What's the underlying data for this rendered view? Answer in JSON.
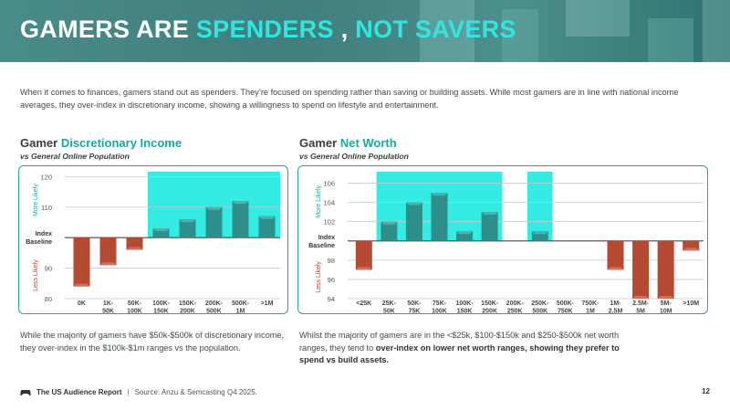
{
  "header": {
    "title_part1": "GAMERS ARE",
    "title_part2": "SPENDERS",
    "title_part3": ",",
    "title_part4": "NOT SAVERS"
  },
  "intro": "When it comes to finances, gamers stand out as spenders. They’re focused on spending rather than saving or building assets. While most gamers are in line with national income averages, they over-index in discretionary income, showing a willingness to spend on lifestyle and entertainment.",
  "left": {
    "title_a": "Gamer",
    "title_b": "Discretionary Income",
    "subtitle": "vs General Online Population",
    "footnote": "While the majority of gamers have $50k-$500k of discretionary income, they over-index in the $100k-$1m ranges vs the population."
  },
  "right": {
    "title_a": "Gamer",
    "title_b": "Net Worth",
    "subtitle": "vs General Online Population",
    "footnote_plain": "Whilst the majority of gamers are in the <$25k, $100-$150k and $250-$500k net worth ranges, they tend to",
    "footnote_bold": "over-index on lower net worth ranges, showing they prefer to spend vs build assets."
  },
  "footer": {
    "brand": "The US Audience Report",
    "source": "Source: Anzu & Semcasting Q4 2025.",
    "page": "12"
  },
  "colors": {
    "teal_bar": "#2e8f8a",
    "red_bar": "#b54a32",
    "highlight": "#34ece4",
    "accent": "#1aa79f"
  },
  "chart_data": [
    {
      "type": "bar",
      "title": "Gamer Discretionary Income",
      "subtitle": "vs General Online Population",
      "categories": [
        "0K",
        "1K-50K",
        "50K-100K",
        "100K-150K",
        "150K-200K",
        "200K-500K",
        "500K-1M",
        ">1M"
      ],
      "category_lines": [
        [
          "0K"
        ],
        [
          "1K-",
          "50K"
        ],
        [
          "50K-",
          "100K"
        ],
        [
          "100K-",
          "150K"
        ],
        [
          "150K-",
          "200K"
        ],
        [
          "200K-",
          "500K"
        ],
        [
          "500K-",
          "1M"
        ],
        [
          ">1M"
        ]
      ],
      "values": [
        84,
        91,
        96,
        103,
        106,
        110,
        112,
        107
      ],
      "baseline": 100,
      "baseline_label": [
        "Index",
        "Baseline"
      ],
      "ylim": [
        80,
        121
      ],
      "yticks": [
        80,
        90,
        110,
        120
      ],
      "upper_label": "More Likely",
      "lower_label": "Less Likely",
      "highlight_categories": [
        3,
        4,
        5,
        6,
        7
      ]
    },
    {
      "type": "bar",
      "title": "Gamer Net Worth",
      "subtitle": "vs General Online Population",
      "categories": [
        "<25K",
        "25K-50K",
        "50K-75K",
        "75K-100K",
        "100K-150K",
        "150K-200K",
        "200K-250K",
        "250K-500K",
        "500K-750K",
        "750K-1M",
        "1M-2.5M",
        "2.5M-5M",
        "5M-10M",
        ">10M"
      ],
      "category_lines": [
        [
          "<25K"
        ],
        [
          "25K-",
          "50K"
        ],
        [
          "50K-",
          "75K"
        ],
        [
          "75K-",
          "100K"
        ],
        [
          "100K-",
          "150K"
        ],
        [
          "150K-",
          "200K"
        ],
        [
          "200K-",
          "250K"
        ],
        [
          "250K-",
          "500K"
        ],
        [
          "500K-",
          "750K"
        ],
        [
          "750K-",
          "1M"
        ],
        [
          "1M-",
          "2.5M"
        ],
        [
          "2.5M-",
          "5M"
        ],
        [
          "5M-",
          "10M"
        ],
        [
          ">10M"
        ]
      ],
      "values": [
        97,
        102,
        104,
        105,
        101,
        103,
        100,
        101,
        100,
        100,
        97,
        94,
        94,
        99
      ],
      "baseline": 100,
      "baseline_label": [
        "Index",
        "Baseline"
      ],
      "ylim": [
        94,
        107
      ],
      "yticks": [
        94,
        96,
        98,
        102,
        104,
        106
      ],
      "upper_label": "More Likely",
      "lower_label": "Less Likely",
      "highlight_categories": [
        1,
        2,
        3,
        4,
        5,
        7
      ]
    }
  ]
}
